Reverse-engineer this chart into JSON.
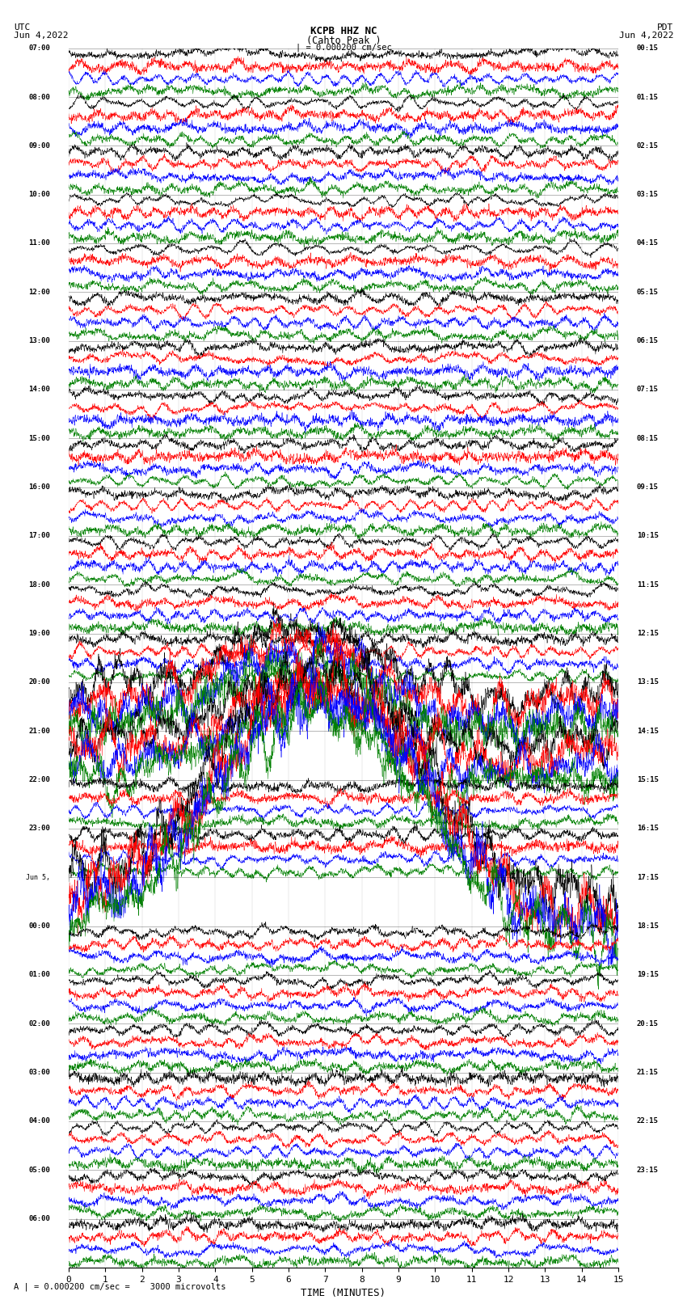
{
  "title_line1": "KCPB HHZ NC",
  "title_line2": "(Cahto Peak )",
  "title_scale": "| = 0.000200 cm/sec",
  "left_header": "UTC",
  "left_date": "Jun 4,2022",
  "right_header": "PDT",
  "right_date": "Jun 4,2022",
  "xlabel": "TIME (MINUTES)",
  "bottom_label": "A | = 0.000200 cm/sec =    3000 microvolts",
  "xlim": [
    0,
    15
  ],
  "xticks": [
    0,
    1,
    2,
    3,
    4,
    5,
    6,
    7,
    8,
    9,
    10,
    11,
    12,
    13,
    14,
    15
  ],
  "utc_times": [
    "07:00",
    "08:00",
    "09:00",
    "10:00",
    "11:00",
    "12:00",
    "13:00",
    "14:00",
    "15:00",
    "16:00",
    "17:00",
    "18:00",
    "19:00",
    "20:00",
    "21:00",
    "22:00",
    "23:00",
    "Jun 5,",
    "00:00",
    "01:00",
    "02:00",
    "03:00",
    "04:00",
    "05:00",
    "06:00"
  ],
  "pdt_times": [
    "00:15",
    "01:15",
    "02:15",
    "03:15",
    "04:15",
    "05:15",
    "06:15",
    "07:15",
    "08:15",
    "09:15",
    "10:15",
    "11:15",
    "12:15",
    "13:15",
    "14:15",
    "15:15",
    "16:15",
    "17:15",
    "18:15",
    "19:15",
    "20:15",
    "21:15",
    "22:15",
    "23:15"
  ],
  "n_rows": 25,
  "traces_per_row": 4,
  "colors": [
    "black",
    "red",
    "blue",
    "green"
  ],
  "fig_width": 8.5,
  "fig_height": 16.13,
  "background_color": "white",
  "seed": 42,
  "n_pts": 3000,
  "special_large_rows": [
    13,
    14
  ],
  "special_event_row": 17,
  "special_jun5_row": 17
}
